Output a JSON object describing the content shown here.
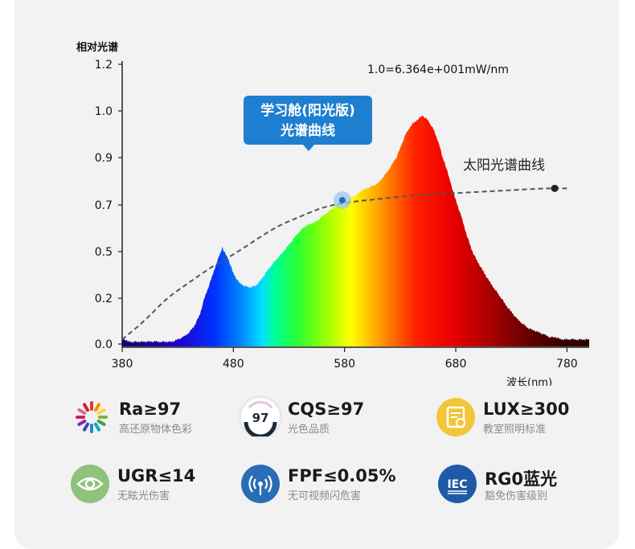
{
  "chart_data": {
    "type": "area",
    "ylabel": "相对光谱",
    "xlabel": "波长(nm)",
    "scale_note": "1.0=6.364e+001mW/nm",
    "y_ticks": [
      "0.0",
      "0.2",
      "0.5",
      "0.7",
      "0.9",
      "1.0",
      "1.2"
    ],
    "y_tick_values": [
      0.0,
      0.2,
      0.5,
      0.7,
      0.9,
      1.0,
      1.2
    ],
    "x_ticks": [
      "380",
      "480",
      "580",
      "680",
      "780"
    ],
    "x_tick_values": [
      380,
      480,
      580,
      680,
      780
    ],
    "xlim": [
      380,
      800
    ],
    "ylim": [
      0,
      1.2
    ],
    "series": [
      {
        "name": "学习舱(阳光版)光谱曲线",
        "x": [
          380,
          385,
          390,
          395,
          400,
          405,
          410,
          415,
          420,
          425,
          430,
          435,
          440,
          445,
          450,
          455,
          460,
          465,
          470,
          475,
          480,
          485,
          490,
          495,
          500,
          505,
          510,
          515,
          520,
          525,
          530,
          535,
          540,
          545,
          550,
          555,
          560,
          565,
          570,
          575,
          580,
          585,
          590,
          595,
          600,
          605,
          610,
          615,
          620,
          625,
          630,
          635,
          640,
          645,
          650,
          655,
          660,
          665,
          670,
          675,
          680,
          685,
          690,
          695,
          700,
          705,
          710,
          715,
          720,
          725,
          730,
          735,
          740,
          745,
          750,
          755,
          760,
          765,
          770,
          775,
          780,
          785,
          790,
          795,
          800
        ],
        "y": [
          0.03,
          0.01,
          0.01,
          0.01,
          0.01,
          0.01,
          0.01,
          0.01,
          0.01,
          0.01,
          0.02,
          0.03,
          0.05,
          0.08,
          0.13,
          0.22,
          0.32,
          0.43,
          0.52,
          0.46,
          0.36,
          0.3,
          0.28,
          0.27,
          0.28,
          0.32,
          0.37,
          0.42,
          0.46,
          0.5,
          0.53,
          0.56,
          0.59,
          0.61,
          0.62,
          0.63,
          0.65,
          0.67,
          0.69,
          0.71,
          0.72,
          0.73,
          0.74,
          0.76,
          0.77,
          0.78,
          0.79,
          0.82,
          0.85,
          0.89,
          0.92,
          0.95,
          0.97,
          0.98,
          0.99,
          0.98,
          0.96,
          0.93,
          0.88,
          0.8,
          0.72,
          0.65,
          0.57,
          0.5,
          0.43,
          0.37,
          0.31,
          0.26,
          0.21,
          0.17,
          0.14,
          0.11,
          0.09,
          0.07,
          0.06,
          0.05,
          0.04,
          0.03,
          0.03,
          0.02,
          0.02,
          0.02,
          0.02,
          0.02,
          0.02
        ]
      },
      {
        "name": "太阳光谱曲线",
        "x": [
          380,
          400,
          420,
          440,
          460,
          480,
          500,
          520,
          540,
          560,
          580,
          600,
          620,
          640,
          660,
          680,
          700,
          720,
          740,
          760,
          780
        ],
        "y": [
          0.02,
          0.1,
          0.2,
          0.3,
          0.4,
          0.48,
          0.55,
          0.61,
          0.65,
          0.69,
          0.71,
          0.72,
          0.73,
          0.74,
          0.745,
          0.75,
          0.755,
          0.76,
          0.765,
          0.77,
          0.77
        ]
      }
    ],
    "marker": {
      "x": 578,
      "y": 0.72
    }
  },
  "callout": {
    "line1": "学习舱(阳光版)",
    "line2": "光谱曲线"
  },
  "sun_label": "太阳光谱曲线",
  "features": [
    {
      "title": "Ra≥97",
      "subtitle": "高还原物体色彩",
      "icon": "color-wheel-icon",
      "color": "#ffffff"
    },
    {
      "title": "CQS≥97",
      "subtitle": "光色品质",
      "icon": "cqs-badge-icon",
      "badge": "97",
      "color": "#ffffff"
    },
    {
      "title": "LUX≥300",
      "subtitle": "教室照明标准",
      "icon": "document-check-icon",
      "color": "#f2c53a"
    },
    {
      "title": "UGR≤14",
      "subtitle": "无眩光伤害",
      "icon": "eye-icon",
      "color": "#8fc27c"
    },
    {
      "title": "FPF≤0.05%",
      "subtitle": "无可视频闪危害",
      "icon": "signal-icon",
      "color": "#2a6db5"
    },
    {
      "title": "RG0蓝光",
      "subtitle": "豁免伤害级别",
      "icon": "iec-icon",
      "badge": "IEC",
      "color": "#1f5aa8"
    }
  ]
}
